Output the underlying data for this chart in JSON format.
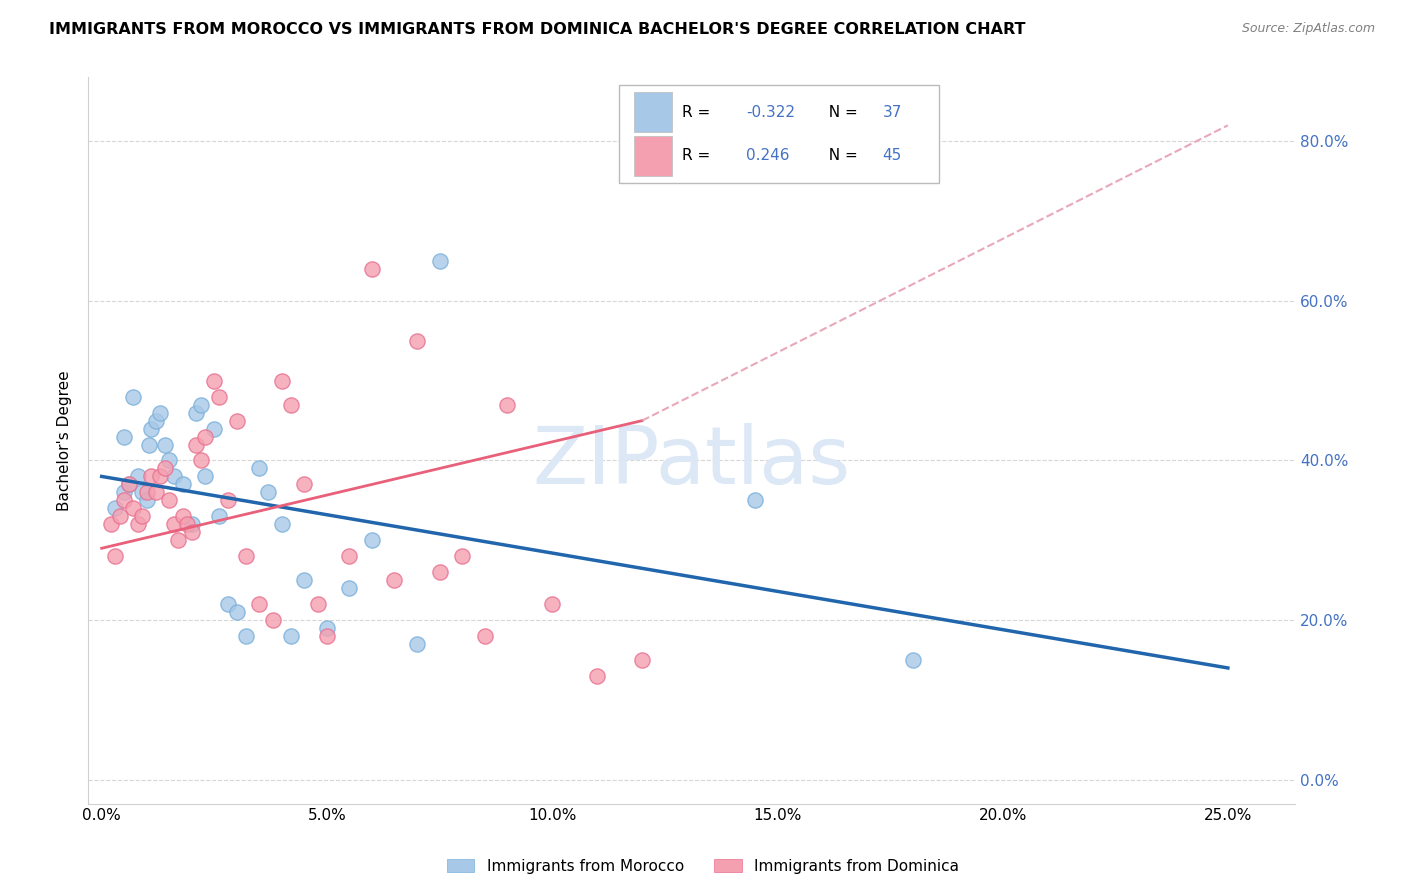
{
  "title": "IMMIGRANTS FROM MOROCCO VS IMMIGRANTS FROM DOMINICA BACHELOR'S DEGREE CORRELATION CHART",
  "source": "Source: ZipAtlas.com",
  "xlim": [
    -0.3,
    26.5
  ],
  "ylim": [
    -3,
    88
  ],
  "morocco_R": -0.322,
  "morocco_N": 37,
  "dominica_R": 0.246,
  "dominica_N": 45,
  "morocco_color": "#a8c8e8",
  "dominica_color": "#f4a0b0",
  "morocco_edge_color": "#7ab0d8",
  "dominica_edge_color": "#e87090",
  "morocco_line_color": "#2166ac",
  "dominica_line_color": "#e8607a",
  "dominica_dash_color": "#e8a8b8",
  "text_blue": "#4472c4",
  "watermark_color": "#dce8f5",
  "morocco_scatter_x": [
    0.3,
    0.5,
    0.5,
    0.6,
    0.7,
    0.8,
    0.9,
    1.0,
    1.05,
    1.1,
    1.2,
    1.3,
    1.4,
    1.5,
    1.6,
    1.8,
    2.0,
    2.1,
    2.2,
    2.3,
    2.5,
    2.6,
    2.8,
    3.0,
    3.2,
    3.5,
    3.7,
    4.0,
    4.2,
    4.5,
    5.0,
    5.5,
    6.0,
    7.0,
    7.5,
    14.5,
    18.0
  ],
  "morocco_scatter_y": [
    34,
    36,
    43,
    37,
    48,
    38,
    36,
    35,
    42,
    44,
    45,
    46,
    42,
    40,
    38,
    37,
    32,
    46,
    47,
    38,
    44,
    33,
    22,
    21,
    18,
    39,
    36,
    32,
    18,
    25,
    19,
    24,
    30,
    17,
    65,
    35,
    15
  ],
  "dominica_scatter_x": [
    0.2,
    0.3,
    0.4,
    0.5,
    0.6,
    0.7,
    0.8,
    0.9,
    1.0,
    1.1,
    1.2,
    1.3,
    1.4,
    1.5,
    1.6,
    1.7,
    1.8,
    1.9,
    2.0,
    2.1,
    2.2,
    2.3,
    2.5,
    2.6,
    2.8,
    3.0,
    3.2,
    3.5,
    3.8,
    4.0,
    4.2,
    4.5,
    4.8,
    5.0,
    5.5,
    6.0,
    6.5,
    7.0,
    7.5,
    8.0,
    8.5,
    9.0,
    10.0,
    11.0,
    12.0
  ],
  "dominica_scatter_y": [
    32,
    28,
    33,
    35,
    37,
    34,
    32,
    33,
    36,
    38,
    36,
    38,
    39,
    35,
    32,
    30,
    33,
    32,
    31,
    42,
    40,
    43,
    50,
    48,
    35,
    45,
    28,
    22,
    20,
    50,
    47,
    37,
    22,
    18,
    28,
    64,
    25,
    55,
    26,
    28,
    18,
    47,
    22,
    13,
    15
  ],
  "morocco_trend": [
    0,
    25,
    38,
    14
  ],
  "dominica_solid": [
    0,
    12,
    29,
    45
  ],
  "dominica_dash": [
    12,
    25,
    45,
    82
  ]
}
